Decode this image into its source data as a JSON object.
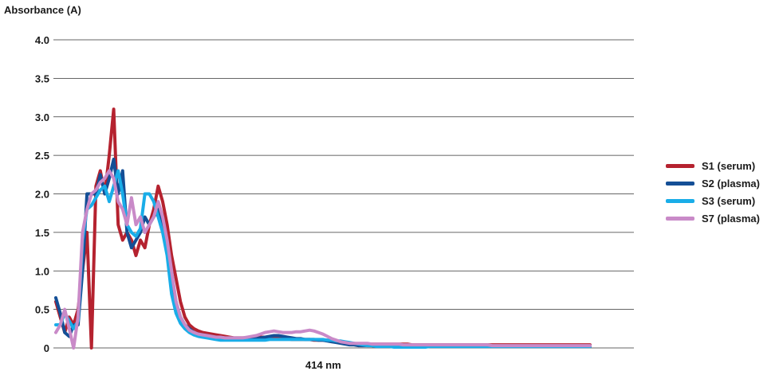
{
  "chart_data": {
    "type": "line",
    "title": "",
    "ylabel": "Absorbance (A)",
    "xlabel": "414 nm",
    "ylim": [
      0,
      4.0
    ],
    "yticks": [
      "0",
      "0.5",
      "1.0",
      "1.5",
      "2.0",
      "2.5",
      "3.0",
      "3.5",
      "4.0"
    ],
    "grid": true,
    "legend_position": "right",
    "x_index": [
      0,
      1,
      2,
      3,
      4,
      5,
      6,
      7,
      8,
      9,
      10,
      11,
      12,
      13,
      14,
      15,
      16,
      17,
      18,
      19,
      20,
      21,
      22,
      23,
      24,
      25,
      26,
      27,
      28,
      29,
      30,
      31,
      32,
      33,
      34,
      35,
      36,
      37,
      38,
      39,
      40,
      41,
      42,
      43,
      44,
      45,
      46,
      47,
      48,
      49,
      50,
      51,
      52,
      53,
      54,
      55,
      56,
      57,
      58,
      59,
      60,
      61,
      62,
      63,
      64,
      65,
      66,
      67,
      68,
      69,
      70,
      71,
      72,
      73,
      74,
      75,
      76,
      77,
      78,
      79,
      80,
      81,
      82,
      83,
      84,
      85,
      86,
      87,
      88,
      89,
      90,
      91,
      92,
      93,
      94,
      95,
      96,
      97,
      98,
      99,
      100,
      101,
      102,
      103,
      104,
      105,
      106,
      107,
      108,
      109,
      110,
      111,
      112,
      113,
      114,
      115,
      116,
      117,
      118,
      119,
      120
    ],
    "series": [
      {
        "name": "S1 (serum)",
        "color": "#b5222f",
        "values": [
          0.6,
          0.4,
          0.2,
          0.4,
          0.3,
          0.5,
          1.0,
          1.5,
          0.0,
          2.1,
          2.3,
          2.0,
          2.5,
          3.1,
          1.6,
          1.4,
          1.5,
          1.4,
          1.2,
          1.4,
          1.3,
          1.6,
          1.8,
          2.1,
          1.9,
          1.6,
          1.2,
          0.9,
          0.6,
          0.4,
          0.3,
          0.25,
          0.22,
          0.2,
          0.19,
          0.18,
          0.17,
          0.16,
          0.15,
          0.14,
          0.13,
          0.13,
          0.13,
          0.13,
          0.14,
          0.14,
          0.14,
          0.14,
          0.13,
          0.12,
          0.12,
          0.12,
          0.12,
          0.11,
          0.11,
          0.11,
          0.11,
          0.11,
          0.1,
          0.1,
          0.1,
          0.1,
          0.09,
          0.09,
          0.08,
          0.07,
          0.06,
          0.05,
          0.05,
          0.05,
          0.05,
          0.05,
          0.05,
          0.05,
          0.05,
          0.05,
          0.05,
          0.05,
          0.05,
          0.05,
          0.04,
          0.04,
          0.04,
          0.04,
          0.04,
          0.04,
          0.04,
          0.04,
          0.04,
          0.04,
          0.04,
          0.04,
          0.04,
          0.04,
          0.04,
          0.04,
          0.04,
          0.04,
          0.04,
          0.04,
          0.04,
          0.04,
          0.04,
          0.04,
          0.04,
          0.04,
          0.04,
          0.04,
          0.04,
          0.04,
          0.04,
          0.04,
          0.04,
          0.04,
          0.04,
          0.04,
          0.04,
          0.04,
          0.04,
          0.04,
          0.04
        ],
        "lw": 4
      },
      {
        "name": "S2 (plasma)",
        "color": "#144f96",
        "values": [
          0.65,
          0.45,
          0.2,
          0.15,
          0.3,
          0.3,
          1.0,
          2.0,
          2.0,
          2.0,
          2.25,
          2.0,
          2.2,
          2.45,
          2.0,
          2.3,
          1.5,
          1.3,
          1.4,
          1.5,
          1.7,
          1.6,
          1.7,
          1.8,
          1.6,
          1.3,
          0.9,
          0.6,
          0.4,
          0.3,
          0.25,
          0.2,
          0.18,
          0.17,
          0.16,
          0.15,
          0.14,
          0.13,
          0.12,
          0.12,
          0.12,
          0.11,
          0.11,
          0.11,
          0.11,
          0.12,
          0.13,
          0.14,
          0.15,
          0.16,
          0.16,
          0.15,
          0.14,
          0.13,
          0.12,
          0.12,
          0.11,
          0.11,
          0.11,
          0.1,
          0.1,
          0.09,
          0.08,
          0.07,
          0.06,
          0.05,
          0.04,
          0.04,
          0.03,
          0.03,
          0.03,
          0.03,
          0.02,
          0.02,
          0.02,
          0.02,
          0.02,
          0.02,
          0.02,
          0.02,
          0.02,
          0.02,
          0.02,
          0.02,
          0.02,
          0.02,
          0.02,
          0.02,
          0.02,
          0.02,
          0.02,
          0.02,
          0.02,
          0.02,
          0.02,
          0.02,
          0.02,
          0.02,
          0.02,
          0.02,
          0.02,
          0.02,
          0.02,
          0.02,
          0.02,
          0.02,
          0.02,
          0.02,
          0.02,
          0.02,
          0.02,
          0.02,
          0.02,
          0.02,
          0.02,
          0.02,
          0.02,
          0.02,
          0.02,
          0.02,
          0.02
        ],
        "lw": 4
      },
      {
        "name": "S3 (serum)",
        "color": "#19ade8",
        "values": [
          0.3,
          0.3,
          0.45,
          0.35,
          0.25,
          0.35,
          1.4,
          1.8,
          1.85,
          1.95,
          2.05,
          2.1,
          1.9,
          2.1,
          2.3,
          2.0,
          1.6,
          1.5,
          1.45,
          1.55,
          2.0,
          2.0,
          1.9,
          1.7,
          1.5,
          1.2,
          0.7,
          0.45,
          0.32,
          0.25,
          0.2,
          0.17,
          0.15,
          0.14,
          0.13,
          0.12,
          0.11,
          0.1,
          0.1,
          0.1,
          0.1,
          0.1,
          0.1,
          0.1,
          0.1,
          0.1,
          0.1,
          0.1,
          0.11,
          0.11,
          0.11,
          0.11,
          0.11,
          0.11,
          0.11,
          0.11,
          0.11,
          0.11,
          0.11,
          0.11,
          0.11,
          0.1,
          0.1,
          0.09,
          0.09,
          0.08,
          0.07,
          0.06,
          0.05,
          0.04,
          0.03,
          0.03,
          0.02,
          0.02,
          0.02,
          0.02,
          0.01,
          0.01,
          0.01,
          0.01,
          0.01,
          0.01,
          0.01,
          0.01,
          0.02,
          0.02,
          0.02,
          0.02,
          0.02,
          0.02,
          0.02,
          0.02,
          0.02,
          0.02,
          0.02,
          0.02,
          0.02,
          0.02,
          0.02,
          0.02,
          0.02,
          0.02,
          0.02,
          0.02,
          0.02,
          0.02,
          0.02,
          0.02,
          0.02,
          0.02,
          0.02,
          0.02,
          0.02,
          0.02,
          0.02,
          0.02,
          0.02,
          0.02,
          0.02,
          0.02,
          0.02
        ],
        "lw": 4
      },
      {
        "name": "S7 (plasma)",
        "color": "#c98ac8",
        "values": [
          0.2,
          0.3,
          0.5,
          0.25,
          0.0,
          0.4,
          1.5,
          1.8,
          2.0,
          2.05,
          2.15,
          2.2,
          2.3,
          2.2,
          1.9,
          1.8,
          1.6,
          1.95,
          1.6,
          1.7,
          1.5,
          1.6,
          1.7,
          1.9,
          1.7,
          1.4,
          1.0,
          0.6,
          0.4,
          0.3,
          0.23,
          0.2,
          0.18,
          0.17,
          0.16,
          0.15,
          0.14,
          0.14,
          0.13,
          0.13,
          0.13,
          0.13,
          0.13,
          0.14,
          0.15,
          0.16,
          0.18,
          0.2,
          0.21,
          0.22,
          0.21,
          0.2,
          0.2,
          0.2,
          0.21,
          0.21,
          0.22,
          0.23,
          0.22,
          0.2,
          0.18,
          0.15,
          0.12,
          0.1,
          0.08,
          0.07,
          0.06,
          0.06,
          0.06,
          0.06,
          0.06,
          0.05,
          0.05,
          0.05,
          0.05,
          0.05,
          0.05,
          0.05,
          0.04,
          0.04,
          0.04,
          0.04,
          0.04,
          0.04,
          0.04,
          0.04,
          0.04,
          0.04,
          0.04,
          0.04,
          0.04,
          0.04,
          0.04,
          0.04,
          0.04,
          0.04,
          0.04,
          0.04,
          0.03,
          0.03,
          0.03,
          0.03,
          0.03,
          0.03,
          0.03,
          0.03,
          0.03,
          0.03,
          0.03,
          0.03,
          0.03,
          0.03,
          0.03,
          0.03,
          0.03,
          0.03,
          0.03,
          0.03,
          0.03,
          0.03,
          0.03
        ],
        "lw": 4
      }
    ]
  }
}
